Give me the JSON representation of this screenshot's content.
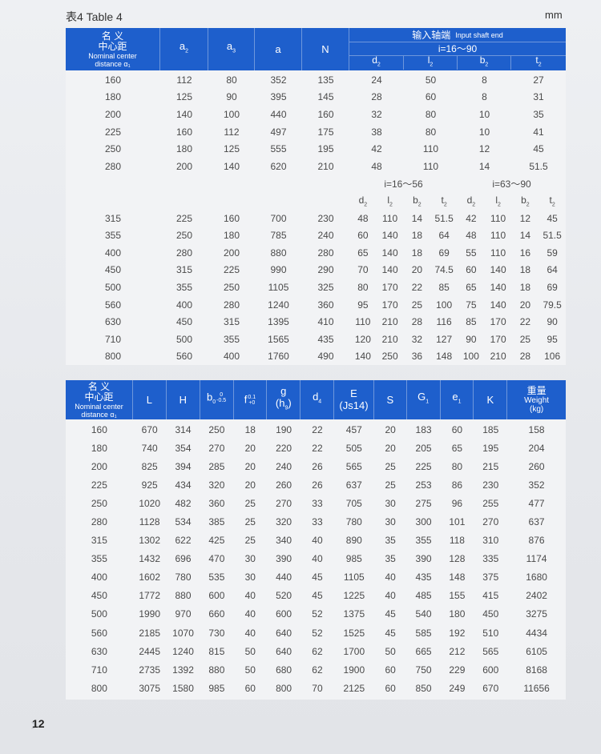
{
  "page": {
    "title": "表4    Table 4",
    "unit": "mm",
    "number": "12"
  },
  "colors": {
    "header_blue": "#1e5fcc",
    "body": "#f2f3f5"
  },
  "table1": {
    "headers": {
      "name": {
        "cn1": "名 义",
        "cn2": "中心距",
        "en": "Nominal center distance α₁"
      },
      "cols": [
        {
          "base": "a",
          "sub": "2"
        },
        {
          "base": "a",
          "sub": "3"
        },
        {
          "base": "a",
          "sub": ""
        },
        {
          "base": "N",
          "sub": ""
        }
      ],
      "group": {
        "cn": "输入轴端",
        "en": "Input shaft end",
        "range": "i=16～90"
      },
      "sub_cols": [
        {
          "base": "d",
          "sub": "2"
        },
        {
          "base": "l",
          "sub": "2"
        },
        {
          "base": "b",
          "sub": "2"
        },
        {
          "base": "t",
          "sub": "2"
        }
      ]
    },
    "rows_upper": [
      [
        "160",
        "112",
        "80",
        "352",
        "135",
        "24",
        "50",
        "8",
        "27"
      ],
      [
        "180",
        "125",
        "90",
        "395",
        "145",
        "28",
        "60",
        "8",
        "31"
      ],
      [
        "200",
        "140",
        "100",
        "440",
        "160",
        "32",
        "80",
        "10",
        "35"
      ],
      [
        "225",
        "160",
        "112",
        "497",
        "175",
        "38",
        "80",
        "10",
        "41"
      ],
      [
        "250",
        "180",
        "125",
        "555",
        "195",
        "42",
        "110",
        "12",
        "45"
      ],
      [
        "280",
        "200",
        "140",
        "620",
        "210",
        "48",
        "110",
        "14",
        "51.5"
      ]
    ],
    "mid_ranges": [
      "i=16～56",
      "i=63～90"
    ],
    "mid_cols": [
      {
        "base": "d",
        "sub": "2"
      },
      {
        "base": "l",
        "sub": "2"
      },
      {
        "base": "b",
        "sub": "2"
      },
      {
        "base": "t",
        "sub": "2"
      },
      {
        "base": "d",
        "sub": "2"
      },
      {
        "base": "l",
        "sub": "2"
      },
      {
        "base": "b",
        "sub": "2"
      },
      {
        "base": "t",
        "sub": "2"
      }
    ],
    "rows_lower": [
      [
        "315",
        "225",
        "160",
        "700",
        "230",
        "48",
        "110",
        "14",
        "51.5",
        "42",
        "110",
        "12",
        "45"
      ],
      [
        "355",
        "250",
        "180",
        "785",
        "240",
        "60",
        "140",
        "18",
        "64",
        "48",
        "110",
        "14",
        "51.5"
      ],
      [
        "400",
        "280",
        "200",
        "880",
        "280",
        "65",
        "140",
        "18",
        "69",
        "55",
        "110",
        "16",
        "59"
      ],
      [
        "450",
        "315",
        "225",
        "990",
        "290",
        "70",
        "140",
        "20",
        "74.5",
        "60",
        "140",
        "18",
        "64"
      ],
      [
        "500",
        "355",
        "250",
        "1105",
        "325",
        "80",
        "170",
        "22",
        "85",
        "65",
        "140",
        "18",
        "69"
      ],
      [
        "560",
        "400",
        "280",
        "1240",
        "360",
        "95",
        "170",
        "25",
        "100",
        "75",
        "140",
        "20",
        "79.5"
      ],
      [
        "630",
        "450",
        "315",
        "1395",
        "410",
        "110",
        "210",
        "28",
        "116",
        "85",
        "170",
        "22",
        "90"
      ],
      [
        "710",
        "500",
        "355",
        "1565",
        "435",
        "120",
        "210",
        "32",
        "127",
        "90",
        "170",
        "25",
        "95"
      ],
      [
        "800",
        "560",
        "400",
        "1760",
        "490",
        "140",
        "250",
        "36",
        "148",
        "100",
        "210",
        "28",
        "106"
      ]
    ]
  },
  "table2": {
    "headers": [
      {
        "cn1": "名 义",
        "cn2": "中心距",
        "en": "Nominal center distance α₁"
      },
      {
        "base": "L"
      },
      {
        "base": "H"
      },
      {
        "base": "b",
        "sub": "0",
        "sup": "0",
        "sub2": "-0.5"
      },
      {
        "base": "f",
        "sup": "0.1",
        "sub2": "+0"
      },
      {
        "base": "g",
        "line2": "(h",
        "line2sub": "9",
        "line2end": ")"
      },
      {
        "base": "d",
        "sub": "4"
      },
      {
        "base": "E",
        "line2": "(Js14)"
      },
      {
        "base": "S"
      },
      {
        "base": "G",
        "sub": "1"
      },
      {
        "base": "e",
        "sub": "1"
      },
      {
        "base": "K"
      },
      {
        "cn": "重量",
        "en1": "Weight",
        "en2": "(kg)"
      }
    ],
    "rows": [
      [
        "160",
        "670",
        "314",
        "250",
        "18",
        "190",
        "22",
        "457",
        "20",
        "183",
        "60",
        "185",
        "158"
      ],
      [
        "180",
        "740",
        "354",
        "270",
        "20",
        "220",
        "22",
        "505",
        "20",
        "205",
        "65",
        "195",
        "204"
      ],
      [
        "200",
        "825",
        "394",
        "285",
        "20",
        "240",
        "26",
        "565",
        "25",
        "225",
        "80",
        "215",
        "260"
      ],
      [
        "225",
        "925",
        "434",
        "320",
        "20",
        "260",
        "26",
        "637",
        "25",
        "253",
        "86",
        "230",
        "352"
      ],
      [
        "250",
        "1020",
        "482",
        "360",
        "25",
        "270",
        "33",
        "705",
        "30",
        "275",
        "96",
        "255",
        "477"
      ],
      [
        "280",
        "1128",
        "534",
        "385",
        "25",
        "320",
        "33",
        "780",
        "30",
        "300",
        "101",
        "270",
        "637"
      ],
      [
        "315",
        "1302",
        "622",
        "425",
        "25",
        "340",
        "40",
        "890",
        "35",
        "355",
        "118",
        "310",
        "876"
      ],
      [
        "355",
        "1432",
        "696",
        "470",
        "30",
        "390",
        "40",
        "985",
        "35",
        "390",
        "128",
        "335",
        "1174"
      ],
      [
        "400",
        "1602",
        "780",
        "535",
        "30",
        "440",
        "45",
        "1105",
        "40",
        "435",
        "148",
        "375",
        "1680"
      ],
      [
        "450",
        "1772",
        "880",
        "600",
        "40",
        "520",
        "45",
        "1225",
        "40",
        "485",
        "155",
        "415",
        "2402"
      ],
      [
        "500",
        "1990",
        "970",
        "660",
        "40",
        "600",
        "52",
        "1375",
        "45",
        "540",
        "180",
        "450",
        "3275"
      ],
      [
        "560",
        "2185",
        "1070",
        "730",
        "40",
        "640",
        "52",
        "1525",
        "45",
        "585",
        "192",
        "510",
        "4434"
      ],
      [
        "630",
        "2445",
        "1240",
        "815",
        "50",
        "640",
        "62",
        "1700",
        "50",
        "665",
        "212",
        "565",
        "6105"
      ],
      [
        "710",
        "2735",
        "1392",
        "880",
        "50",
        "680",
        "62",
        "1900",
        "60",
        "750",
        "229",
        "600",
        "8168"
      ],
      [
        "800",
        "3075",
        "1580",
        "985",
        "60",
        "800",
        "70",
        "2125",
        "60",
        "850",
        "249",
        "670",
        "11656"
      ]
    ]
  }
}
